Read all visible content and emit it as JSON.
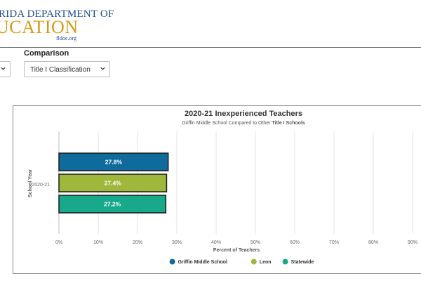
{
  "header": {
    "logo_line1": "RIDA DEPARTMENT OF",
    "logo_line2": "UCATION",
    "logo_url": "fldoe.org"
  },
  "filters": {
    "comparison_label": "Comparison",
    "comparison_value": "Title I Classification"
  },
  "colors": {
    "accent_blue": "#0f6b9b",
    "accent_green": "#9fb83b",
    "accent_teal": "#17a98a"
  },
  "chart_data": {
    "type": "bar",
    "orientation": "horizontal",
    "title": "2020-21 Inexperienced Teachers",
    "subtitle_prefix": "Griffin Middle School Compared to Other ",
    "subtitle_bold": "Title I Schools",
    "xlabel": "Percent of Teachers",
    "ylabel": "School Year",
    "categories": [
      "2020-21"
    ],
    "xlim": [
      0,
      90
    ],
    "xticks": [
      "0%",
      "10%",
      "20%",
      "30%",
      "40%",
      "50%",
      "60%",
      "70%",
      "80%",
      "90%"
    ],
    "grid": true,
    "legend_position": "bottom",
    "series": [
      {
        "name": "Griffin Middle School",
        "values": [
          27.8
        ],
        "label": "27.8%",
        "color": "#0f6b9b"
      },
      {
        "name": "Leon",
        "values": [
          27.4
        ],
        "label": "27.4%",
        "color": "#9fb83b"
      },
      {
        "name": "Statewide",
        "values": [
          27.2
        ],
        "label": "27.2%",
        "color": "#17a98a"
      }
    ]
  }
}
